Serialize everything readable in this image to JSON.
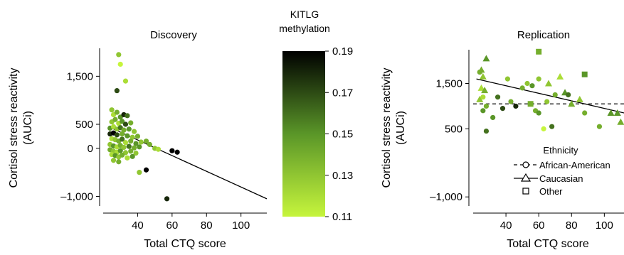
{
  "colorbar": {
    "title_line1": "KITLG",
    "title_line2": "methylation",
    "ticks": [
      "0.19",
      "0.17",
      "0.15",
      "0.13",
      "0.11"
    ],
    "tick_values": [
      0.19,
      0.17,
      0.15,
      0.13,
      0.11
    ],
    "range": [
      0.11,
      0.19
    ],
    "color_low": "#c6f53c",
    "color_mid": "#5a9628",
    "color_high": "#000000"
  },
  "legend": {
    "title": "Ethnicity",
    "items": [
      {
        "label": "African-American",
        "marker": "circle",
        "line": "dashed"
      },
      {
        "label": "Caucasian",
        "marker": "triangle",
        "line": "solid"
      },
      {
        "label": "Other",
        "marker": "square",
        "line": "none"
      }
    ]
  },
  "chart_data": [
    {
      "type": "scatter",
      "title": "Discovery",
      "xlabel": "Total CTQ score",
      "ylabel_line1": "Cortisol stress reactivity",
      "ylabel_line2": "(AUCi)",
      "xlim": [
        20,
        115
      ],
      "ylim": [
        -1200,
        2200
      ],
      "xticks": [
        40,
        60,
        80,
        100
      ],
      "xtick_labels": [
        "40",
        "60",
        "80",
        "100"
      ],
      "yticks": [
        1500,
        500,
        0,
        -1000
      ],
      "ytick_labels": [
        "1,500",
        "500",
        "0",
        "–1,000"
      ],
      "grid": false,
      "regression": {
        "x": [
          25,
          115
        ],
        "y": [
          420,
          -1050
        ],
        "style": "solid"
      },
      "points": [
        {
          "x": 29,
          "y": 1950,
          "m": 0.13
        },
        {
          "x": 30,
          "y": 1750,
          "m": 0.11
        },
        {
          "x": 33,
          "y": 1400,
          "m": 0.12
        },
        {
          "x": 28,
          "y": 1200,
          "m": 0.17
        },
        {
          "x": 25,
          "y": 800,
          "m": 0.13
        },
        {
          "x": 26,
          "y": 700,
          "m": 0.12
        },
        {
          "x": 28,
          "y": 750,
          "m": 0.14
        },
        {
          "x": 30,
          "y": 650,
          "m": 0.15
        },
        {
          "x": 32,
          "y": 700,
          "m": 0.18
        },
        {
          "x": 34,
          "y": 680,
          "m": 0.16
        },
        {
          "x": 25,
          "y": 550,
          "m": 0.13
        },
        {
          "x": 27,
          "y": 600,
          "m": 0.14
        },
        {
          "x": 29,
          "y": 520,
          "m": 0.12
        },
        {
          "x": 31,
          "y": 560,
          "m": 0.15
        },
        {
          "x": 33,
          "y": 500,
          "m": 0.17
        },
        {
          "x": 36,
          "y": 530,
          "m": 0.14
        },
        {
          "x": 24,
          "y": 420,
          "m": 0.15
        },
        {
          "x": 26,
          "y": 450,
          "m": 0.12
        },
        {
          "x": 28,
          "y": 400,
          "m": 0.13
        },
        {
          "x": 30,
          "y": 430,
          "m": 0.16
        },
        {
          "x": 32,
          "y": 380,
          "m": 0.14
        },
        {
          "x": 35,
          "y": 400,
          "m": 0.15
        },
        {
          "x": 38,
          "y": 350,
          "m": 0.13
        },
        {
          "x": 24,
          "y": 300,
          "m": 0.18
        },
        {
          "x": 26,
          "y": 320,
          "m": 0.19
        },
        {
          "x": 28,
          "y": 280,
          "m": 0.17
        },
        {
          "x": 31,
          "y": 300,
          "m": 0.14
        },
        {
          "x": 34,
          "y": 260,
          "m": 0.15
        },
        {
          "x": 37,
          "y": 230,
          "m": 0.13
        },
        {
          "x": 40,
          "y": 250,
          "m": 0.14
        },
        {
          "x": 25,
          "y": 200,
          "m": 0.12
        },
        {
          "x": 27,
          "y": 180,
          "m": 0.13
        },
        {
          "x": 29,
          "y": 150,
          "m": 0.14
        },
        {
          "x": 31,
          "y": 190,
          "m": 0.16
        },
        {
          "x": 33,
          "y": 120,
          "m": 0.12
        },
        {
          "x": 36,
          "y": 150,
          "m": 0.14
        },
        {
          "x": 39,
          "y": 100,
          "m": 0.15
        },
        {
          "x": 42,
          "y": 130,
          "m": 0.13
        },
        {
          "x": 45,
          "y": 150,
          "m": 0.14
        },
        {
          "x": 24,
          "y": 80,
          "m": 0.13
        },
        {
          "x": 26,
          "y": 50,
          "m": 0.15
        },
        {
          "x": 28,
          "y": 30,
          "m": 0.12
        },
        {
          "x": 30,
          "y": 60,
          "m": 0.14
        },
        {
          "x": 32,
          "y": 20,
          "m": 0.13
        },
        {
          "x": 35,
          "y": 40,
          "m": 0.16
        },
        {
          "x": 38,
          "y": 10,
          "m": 0.14
        },
        {
          "x": 41,
          "y": 30,
          "m": 0.15
        },
        {
          "x": 47,
          "y": 80,
          "m": 0.14
        },
        {
          "x": 50,
          "y": 0,
          "m": 0.13
        },
        {
          "x": 52,
          "y": -20,
          "m": 0.12
        },
        {
          "x": 24,
          "y": -30,
          "m": 0.14
        },
        {
          "x": 26,
          "y": -60,
          "m": 0.13
        },
        {
          "x": 28,
          "y": -80,
          "m": 0.12
        },
        {
          "x": 30,
          "y": -50,
          "m": 0.15
        },
        {
          "x": 33,
          "y": -90,
          "m": 0.13
        },
        {
          "x": 36,
          "y": -60,
          "m": 0.14
        },
        {
          "x": 39,
          "y": -100,
          "m": 0.13
        },
        {
          "x": 25,
          "y": -130,
          "m": 0.12
        },
        {
          "x": 27,
          "y": -150,
          "m": 0.15
        },
        {
          "x": 29,
          "y": -180,
          "m": 0.13
        },
        {
          "x": 31,
          "y": -140,
          "m": 0.14
        },
        {
          "x": 34,
          "y": -200,
          "m": 0.12
        },
        {
          "x": 37,
          "y": -170,
          "m": 0.15
        },
        {
          "x": 26,
          "y": -250,
          "m": 0.13
        },
        {
          "x": 29,
          "y": -280,
          "m": 0.14
        },
        {
          "x": 41,
          "y": -500,
          "m": 0.13
        },
        {
          "x": 45,
          "y": -450,
          "m": 0.19
        },
        {
          "x": 60,
          "y": -50,
          "m": 0.19
        },
        {
          "x": 63,
          "y": -80,
          "m": 0.19
        },
        {
          "x": 57,
          "y": -1050,
          "m": 0.18
        }
      ]
    },
    {
      "type": "scatter",
      "title": "Replication",
      "xlabel": "Total CTQ score",
      "ylabel_line1": "Cortisol stress reactivity",
      "ylabel_line2": "(AUCi)",
      "xlim": [
        20,
        112
      ],
      "ylim": [
        -1200,
        2400
      ],
      "xticks": [
        40,
        60,
        80,
        100
      ],
      "xtick_labels": [
        "40",
        "60",
        "80",
        "100"
      ],
      "yticks": [
        1500,
        500,
        -1000
      ],
      "ytick_labels": [
        "1,500",
        "500",
        "–1,000"
      ],
      "grid": false,
      "regression": {
        "x": [
          22,
          112
        ],
        "y": [
          1600,
          850
        ],
        "style": "solid"
      },
      "reference_line": {
        "y": 1050,
        "style": "dashed"
      },
      "points": [
        {
          "x": 25,
          "y": 1800,
          "m": 0.14,
          "shape": "triangle"
        },
        {
          "x": 28,
          "y": 2050,
          "m": 0.15,
          "shape": "triangle"
        },
        {
          "x": 26,
          "y": 1650,
          "m": 0.13,
          "shape": "triangle"
        },
        {
          "x": 24,
          "y": 1750,
          "m": 0.14,
          "shape": "circle"
        },
        {
          "x": 25,
          "y": 1400,
          "m": 0.12,
          "shape": "triangle"
        },
        {
          "x": 27,
          "y": 1350,
          "m": 0.14,
          "shape": "triangle"
        },
        {
          "x": 24,
          "y": 1150,
          "m": 0.13,
          "shape": "triangle"
        },
        {
          "x": 26,
          "y": 1200,
          "m": 0.12,
          "shape": "circle"
        },
        {
          "x": 26,
          "y": 900,
          "m": 0.15,
          "shape": "circle"
        },
        {
          "x": 28,
          "y": 1000,
          "m": 0.14,
          "shape": "circle"
        },
        {
          "x": 28,
          "y": 450,
          "m": 0.16,
          "shape": "circle"
        },
        {
          "x": 32,
          "y": 750,
          "m": 0.15,
          "shape": "circle"
        },
        {
          "x": 35,
          "y": 1200,
          "m": 0.16,
          "shape": "circle"
        },
        {
          "x": 38,
          "y": 950,
          "m": 0.17,
          "shape": "circle"
        },
        {
          "x": 41,
          "y": 1600,
          "m": 0.13,
          "shape": "circle"
        },
        {
          "x": 43,
          "y": 1100,
          "m": 0.14,
          "shape": "circle"
        },
        {
          "x": 46,
          "y": 1000,
          "m": 0.18,
          "shape": "circle"
        },
        {
          "x": 50,
          "y": 1400,
          "m": 0.14,
          "shape": "circle"
        },
        {
          "x": 53,
          "y": 1500,
          "m": 0.13,
          "shape": "circle"
        },
        {
          "x": 56,
          "y": 1450,
          "m": 0.15,
          "shape": "circle"
        },
        {
          "x": 60,
          "y": 1600,
          "m": 0.13,
          "shape": "circle"
        },
        {
          "x": 55,
          "y": 1050,
          "m": 0.14,
          "shape": "square"
        },
        {
          "x": 58,
          "y": 900,
          "m": 0.14,
          "shape": "circle"
        },
        {
          "x": 60,
          "y": 850,
          "m": 0.15,
          "shape": "circle"
        },
        {
          "x": 63,
          "y": 500,
          "m": 0.11,
          "shape": "circle"
        },
        {
          "x": 65,
          "y": 1100,
          "m": 0.13,
          "shape": "circle"
        },
        {
          "x": 66,
          "y": 1500,
          "m": 0.13,
          "shape": "triangle"
        },
        {
          "x": 68,
          "y": 550,
          "m": 0.16,
          "shape": "circle"
        },
        {
          "x": 70,
          "y": 1250,
          "m": 0.14,
          "shape": "circle"
        },
        {
          "x": 73,
          "y": 1650,
          "m": 0.12,
          "shape": "triangle"
        },
        {
          "x": 76,
          "y": 1300,
          "m": 0.15,
          "shape": "triangle"
        },
        {
          "x": 78,
          "y": 1250,
          "m": 0.16,
          "shape": "circle"
        },
        {
          "x": 80,
          "y": 1050,
          "m": 0.14,
          "shape": "triangle"
        },
        {
          "x": 85,
          "y": 1150,
          "m": 0.13,
          "shape": "triangle"
        },
        {
          "x": 88,
          "y": 1700,
          "m": 0.15,
          "shape": "square"
        },
        {
          "x": 88,
          "y": 850,
          "m": 0.14,
          "shape": "circle"
        },
        {
          "x": 60,
          "y": 2200,
          "m": 0.14,
          "shape": "square"
        },
        {
          "x": 97,
          "y": 550,
          "m": 0.14,
          "shape": "circle"
        },
        {
          "x": 104,
          "y": 850,
          "m": 0.15,
          "shape": "triangle"
        },
        {
          "x": 108,
          "y": 850,
          "m": 0.15,
          "shape": "triangle"
        },
        {
          "x": 110,
          "y": 650,
          "m": 0.14,
          "shape": "triangle"
        }
      ]
    }
  ]
}
